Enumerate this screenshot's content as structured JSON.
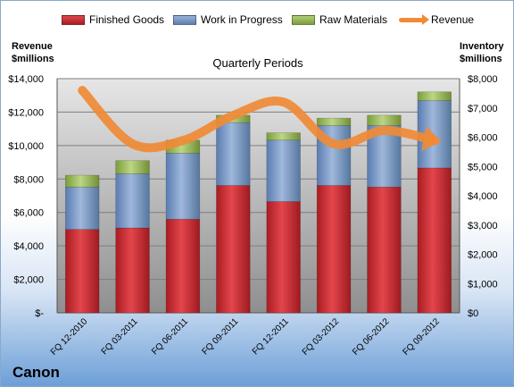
{
  "chart_data": {
    "type": "bar",
    "subtype": "stacked-bar-with-line",
    "title": "Quarterly Periods",
    "brand": "Canon",
    "categories": [
      "FQ 12-2010",
      "FQ 03-2011",
      "FQ 06-2011",
      "FQ 09-2011",
      "FQ 12-2011",
      "FQ 03-2012",
      "FQ 06-2012",
      "FQ 09-2012"
    ],
    "series": [
      {
        "name": "Finished Goods",
        "axis": "right",
        "color": "#c0242b",
        "values": [
          2850,
          2900,
          3200,
          4350,
          3800,
          4350,
          4300,
          4950
        ]
      },
      {
        "name": "Work in Progress",
        "axis": "right",
        "color": "#6f8fbf",
        "values": [
          1450,
          1850,
          2250,
          2150,
          2100,
          2050,
          2100,
          2300
        ]
      },
      {
        "name": "Raw Materials",
        "axis": "right",
        "color": "#8db04a",
        "values": [
          400,
          450,
          450,
          250,
          250,
          250,
          350,
          300
        ]
      },
      {
        "name": "Revenue",
        "axis": "left",
        "type": "line",
        "color": "#f08a35",
        "values": [
          13300,
          10100,
          10300,
          11800,
          12600,
          10100,
          10900,
          10300
        ]
      }
    ],
    "ylabel_left": "Revenue\n$millions",
    "ylabel_right": "Inventory\n$millions",
    "ylim_left": [
      0,
      14000
    ],
    "ylim_right": [
      0,
      8000
    ],
    "yticks_left": [
      "$-",
      "$2,000",
      "$4,000",
      "$6,000",
      "$8,000",
      "$10,000",
      "$12,000",
      "$14,000"
    ],
    "yticks_right": [
      "$0",
      "$1,000",
      "$2,000",
      "$3,000",
      "$4,000",
      "$5,000",
      "$6,000",
      "$7,000",
      "$8,000"
    ],
    "grid": true,
    "legend": "top"
  }
}
